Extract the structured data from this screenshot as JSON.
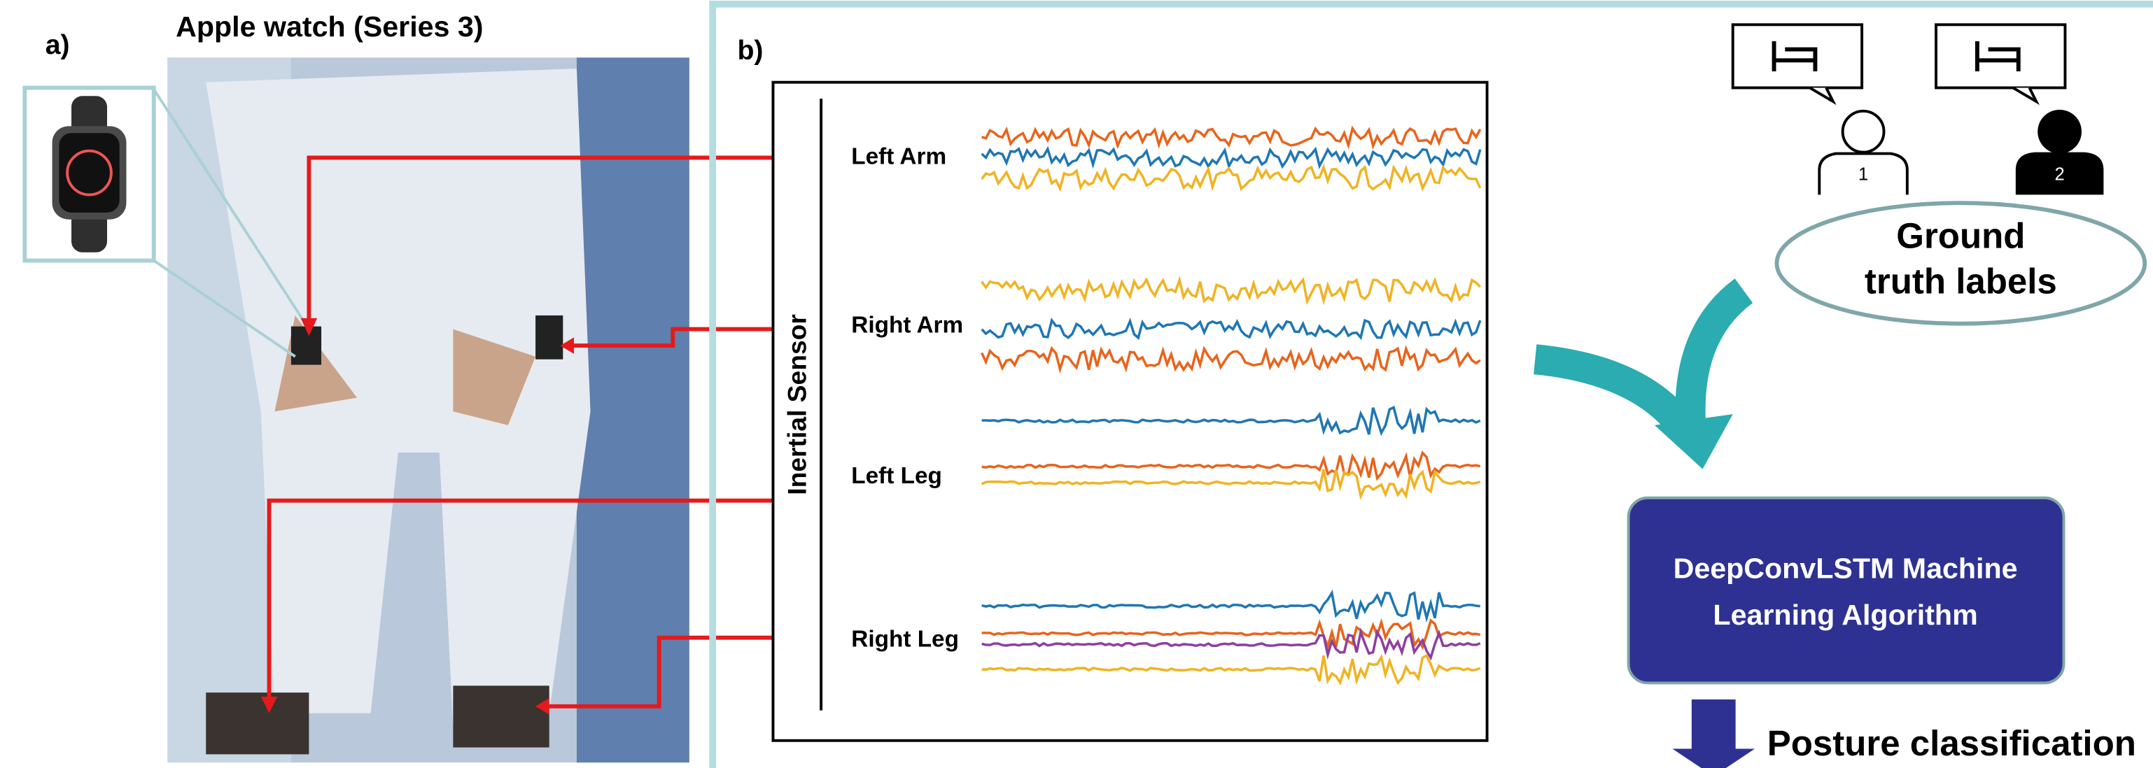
{
  "panel_a": {
    "label": "a)",
    "title": "Apple watch (Series 3)"
  },
  "panel_b": {
    "label": "b)",
    "axis_label": "Inertial Sensor",
    "sensors": [
      "Left Arm",
      "Right Arm",
      "Left Leg",
      "Right Leg"
    ],
    "annotators": [
      "1",
      "2"
    ],
    "ground_truth": [
      "Ground",
      "truth labels"
    ],
    "model": [
      "DeepConvLSTM Machine",
      "Learning Algorithm"
    ],
    "output": "Posture classification"
  }
}
